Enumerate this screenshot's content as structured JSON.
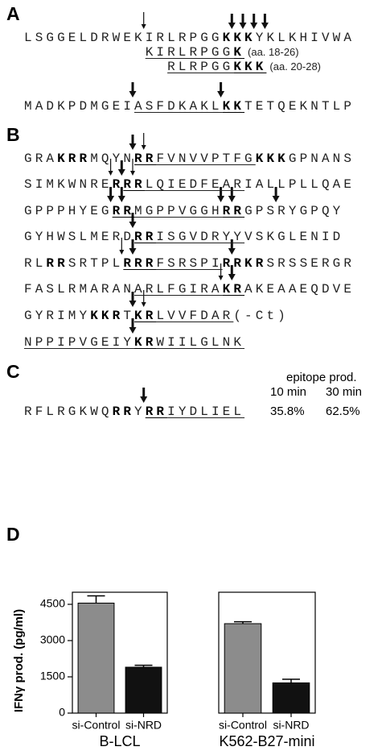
{
  "panel_a": {
    "label": "A",
    "lines": [
      {
        "segments": [
          {
            "text": "LSGGELDRWEKIRLRPGG"
          },
          {
            "text": "KKK",
            "bold": true
          },
          {
            "text": "YKLKHIVWA"
          }
        ]
      },
      {
        "segments": [
          {
            "text": "KIRLRPGG",
            "underline": true
          },
          {
            "text": "K",
            "bold": true,
            "underline": true
          }
        ],
        "note": "(aa. 18-26)"
      },
      {
        "segments": [
          {
            "text": "RLRPGG",
            "underline": true
          },
          {
            "text": "KKK",
            "bold": true,
            "underline": true
          }
        ],
        "note": "(aa. 20-28)"
      },
      {
        "segments": [
          {
            "text": "MADKPDMGEI"
          },
          {
            "text": "ASFDKAKL",
            "underline": true
          },
          {
            "text": "KK",
            "bold": true,
            "underline": true
          },
          {
            "text": "TETQEKNTLP"
          }
        ]
      }
    ]
  },
  "panel_b": {
    "label": "B",
    "lines": [
      {
        "segments": [
          {
            "text": "GRA"
          },
          {
            "text": "KRR",
            "bold": true
          },
          {
            "text": "MQYN"
          },
          {
            "text": "RR",
            "bold": true,
            "underline": true
          },
          {
            "text": "FVNVVPTFG",
            "underline": true
          },
          {
            "text": "KKK",
            "bold": true
          },
          {
            "text": "GPNANS"
          }
        ]
      },
      {
        "segments": [
          {
            "text": "SIMKWNRE"
          },
          {
            "text": "R",
            "bold": true
          },
          {
            "text": "RR",
            "bold": true,
            "underline": true
          },
          {
            "text": "LQIEDFEAR",
            "underline": true
          },
          {
            "text": "IALLPLLQAE"
          }
        ]
      },
      {
        "segments": [
          {
            "text": "GPPPHYEG"
          },
          {
            "text": "RR",
            "bold": true,
            "underline": true
          },
          {
            "text": "MGPPVGGH",
            "underline": true
          },
          {
            "text": "RR",
            "bold": true,
            "underline": true
          },
          {
            "text": "GPSRYGPQY"
          }
        ]
      },
      {
        "segments": [
          {
            "text": "GYHWSLMERD"
          },
          {
            "text": "RR",
            "bold": true,
            "underline": true
          },
          {
            "text": "ISGVDRYY",
            "underline": true
          },
          {
            "text": "VSKGLENID"
          }
        ]
      },
      {
        "segments": [
          {
            "text": "RL"
          },
          {
            "text": "RR",
            "bold": true
          },
          {
            "text": "SRTPL"
          },
          {
            "text": "RRR",
            "bold": true,
            "underline": true
          },
          {
            "text": "FSRSPI",
            "underline": true
          },
          {
            "text": "RRKR",
            "bold": true
          },
          {
            "text": "SRSSERGR"
          }
        ]
      },
      {
        "segments": [
          {
            "text": "FASLRMARAN"
          },
          {
            "text": "ARLFGIRA",
            "underline": true
          },
          {
            "text": "KR",
            "bold": true,
            "underline": true
          },
          {
            "text": "AKEAAEQDVE"
          }
        ]
      },
      {
        "segments": [
          {
            "text": "GYRIMY"
          },
          {
            "text": "KKR",
            "bold": true
          },
          {
            "text": "T"
          },
          {
            "text": "KR",
            "bold": true,
            "underline": true
          },
          {
            "text": "LVVFDAR",
            "underline": true
          },
          {
            "text": "(-Ct)"
          }
        ]
      },
      {
        "segments": [
          {
            "text": "NPPIPVGEIY",
            "underline": true
          },
          {
            "text": "KR",
            "bold": true,
            "underline": true
          },
          {
            "text": "WIILGLNK",
            "underline": true
          }
        ]
      }
    ]
  },
  "panel_c": {
    "label": "C",
    "header": "epitope prod.",
    "columns": [
      "10 min",
      "30 min"
    ],
    "lines": [
      {
        "segments": [
          {
            "text": "RFLRGKWQ"
          },
          {
            "text": "RR",
            "bold": true
          },
          {
            "text": "Y"
          },
          {
            "text": "RR",
            "bold": true,
            "underline": true
          },
          {
            "text": "IYDLIEL",
            "underline": true
          }
        ],
        "cells": [
          "35.8%",
          "62.5%"
        ]
      }
    ]
  },
  "panel_d": {
    "label": "D",
    "ylabel": "IFNγ prod. (pg/ml)"
  },
  "chart_data": [
    {
      "type": "bar",
      "xlabel": "B-LCL",
      "categories": [
        "si-Control",
        "si-NRD"
      ],
      "values": [
        4550,
        1900
      ],
      "errors": [
        300,
        80
      ],
      "colors": [
        "#8c8c8c",
        "#111111"
      ],
      "ylim": [
        0,
        5000
      ],
      "yticks": [
        0,
        1500,
        3000,
        4500
      ]
    },
    {
      "type": "bar",
      "xlabel": "K562-B27-mini",
      "categories": [
        "si-Control",
        "si-NRD"
      ],
      "values": [
        3700,
        1250
      ],
      "errors": [
        80,
        150
      ],
      "colors": [
        "#8c8c8c",
        "#111111"
      ],
      "ylim": [
        0,
        5000
      ]
    }
  ]
}
